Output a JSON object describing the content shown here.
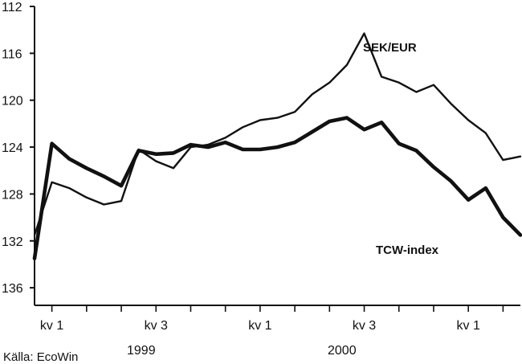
{
  "chart_data": {
    "type": "line",
    "title": "",
    "xlabel": "",
    "ylabel": "",
    "yaxis_inverted": true,
    "ylim": [
      137.5,
      112
    ],
    "yticks": [
      112,
      116,
      120,
      124,
      128,
      132,
      136
    ],
    "grid": false,
    "legend": "inline labels",
    "x_quarter_ticks": [
      "kv 1",
      "kv 3",
      "kv 1",
      "kv 3",
      "kv 1"
    ],
    "x_year_labels": [
      "1999",
      "2000"
    ],
    "source": "Källa: EcoWin",
    "x_dates": [
      "1999-01",
      "1999-02",
      "1999-03",
      "1999-04",
      "1999-05",
      "1999-06",
      "1999-07",
      "1999-08",
      "1999-09",
      "1999-10",
      "1999-11",
      "1999-12",
      "2000-01",
      "2000-02",
      "2000-03",
      "2000-04",
      "2000-05",
      "2000-06",
      "2000-07",
      "2000-08",
      "2000-09",
      "2000-10",
      "2000-11",
      "2000-12",
      "2001-01",
      "2001-02",
      "2001-03",
      "2001-04",
      "2001-05"
    ],
    "series": [
      {
        "name": "SEK/EUR",
        "color": "#111111",
        "values": [
          131.5,
          127.0,
          127.5,
          128.3,
          128.9,
          128.6,
          124.2,
          125.2,
          125.8,
          124.0,
          123.8,
          123.2,
          122.3,
          121.7,
          121.5,
          121.0,
          119.5,
          118.5,
          117.0,
          114.3,
          118.0,
          118.5,
          119.3,
          118.7,
          120.3,
          121.7,
          122.8,
          125.1,
          124.8
        ]
      },
      {
        "name": "TCW-index",
        "color": "#111111",
        "values": [
          133.5,
          123.7,
          125.0,
          125.8,
          126.5,
          127.3,
          124.3,
          124.6,
          124.5,
          123.8,
          124.0,
          123.6,
          124.2,
          124.2,
          124.0,
          123.6,
          122.7,
          121.8,
          121.5,
          122.5,
          121.9,
          123.7,
          124.3,
          125.7,
          126.9,
          128.5,
          127.5,
          130.0,
          131.5
        ]
      }
    ]
  }
}
